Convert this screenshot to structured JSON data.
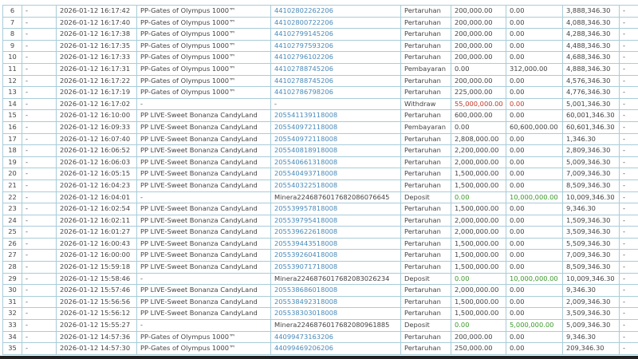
{
  "highlight_row": "14",
  "colors": {
    "link": "#4a8ab8",
    "highlight": "#c0272d",
    "negative": "#c0392b",
    "positive": "#3a9a2a"
  },
  "rows": [
    {
      "no": "6",
      "c2": "-",
      "time": "2026-01-12 16:17:42",
      "game": "PP-Gates of Olympus 1000™",
      "ref": "44102802262206",
      "type": "Pertaruhan",
      "bet": "200,000.00",
      "win": "0.00",
      "balance": "3,888,346.30",
      "c10": "-"
    },
    {
      "no": "7",
      "c2": "-",
      "time": "2026-01-12 16:17:40",
      "game": "PP-Gates of Olympus 1000™",
      "ref": "44102800722206",
      "type": "Pertaruhan",
      "bet": "200,000.00",
      "win": "0.00",
      "balance": "4,088,346.30",
      "c10": "-"
    },
    {
      "no": "8",
      "c2": "-",
      "time": "2026-01-12 16:17:38",
      "game": "PP-Gates of Olympus 1000™",
      "ref": "44102799145206",
      "type": "Pertaruhan",
      "bet": "200,000.00",
      "win": "0.00",
      "balance": "4,288,346.30",
      "c10": "-"
    },
    {
      "no": "9",
      "c2": "-",
      "time": "2026-01-12 16:17:35",
      "game": "PP-Gates of Olympus 1000™",
      "ref": "44102797593206",
      "type": "Pertaruhan",
      "bet": "200,000.00",
      "win": "0.00",
      "balance": "4,488,346.30",
      "c10": "-"
    },
    {
      "no": "10",
      "c2": "-",
      "time": "2026-01-12 16:17:33",
      "game": "PP-Gates of Olympus 1000™",
      "ref": "44102796102206",
      "type": "Pertaruhan",
      "bet": "200,000.00",
      "win": "0.00",
      "balance": "4,688,346.30",
      "c10": "-"
    },
    {
      "no": "11",
      "c2": "-",
      "time": "2026-01-12 16:17:31",
      "game": "PP-Gates of Olympus 1000™",
      "ref": "44102788745206",
      "type": "Pembayaran",
      "bet": "0.00",
      "win": "312,000.00",
      "balance": "4,888,346.30",
      "c10": "-"
    },
    {
      "no": "12",
      "c2": "-",
      "time": "2026-01-12 16:17:22",
      "game": "PP-Gates of Olympus 1000™",
      "ref": "44102788745206",
      "type": "Pertaruhan",
      "bet": "200,000.00",
      "win": "0.00",
      "balance": "4,576,346.30",
      "c10": "-"
    },
    {
      "no": "13",
      "c2": "-",
      "time": "2026-01-12 16:17:19",
      "game": "PP-Gates of Olympus 1000™",
      "ref": "44102786798206",
      "type": "Pertaruhan",
      "bet": "225,000.00",
      "win": "0.00",
      "balance": "4,776,346.30",
      "c10": "-"
    },
    {
      "no": "14",
      "c2": "-",
      "time": "2026-01-12 16:17:02",
      "game": "-",
      "ref": "-",
      "type": "Withdraw",
      "bet": "55,000,000.00",
      "win": "0.00",
      "balance": "5,001,346.30",
      "c10": "-"
    },
    {
      "no": "15",
      "c2": "-",
      "time": "2026-01-12 16:10:00",
      "game": "PP LIVE-Sweet Bonanza CandyLand",
      "ref": "205541139118008",
      "type": "Pertaruhan",
      "bet": "600,000.00",
      "win": "0.00",
      "balance": "60,001,346.30",
      "c10": "-"
    },
    {
      "no": "16",
      "c2": "-",
      "time": "2026-01-12 16:09:33",
      "game": "PP LIVE-Sweet Bonanza CandyLand",
      "ref": "205540972118008",
      "type": "Pembayaran",
      "bet": "0.00",
      "win": "60,600,000.00",
      "balance": "60,601,346.30",
      "c10": "-"
    },
    {
      "no": "17",
      "c2": "-",
      "time": "2026-01-12 16:07:40",
      "game": "PP LIVE-Sweet Bonanza CandyLand",
      "ref": "205540972118008",
      "type": "Pertaruhan",
      "bet": "2,808,000.00",
      "win": "0.00",
      "balance": "1,346.30",
      "c10": "-"
    },
    {
      "no": "18",
      "c2": "-",
      "time": "2026-01-12 16:06:52",
      "game": "PP LIVE-Sweet Bonanza CandyLand",
      "ref": "205540818918008",
      "type": "Pertaruhan",
      "bet": "2,200,000.00",
      "win": "0.00",
      "balance": "2,809,346.30",
      "c10": "-"
    },
    {
      "no": "19",
      "c2": "-",
      "time": "2026-01-12 16:06:03",
      "game": "PP LIVE-Sweet Bonanza CandyLand",
      "ref": "205540661318008",
      "type": "Pertaruhan",
      "bet": "2,000,000.00",
      "win": "0.00",
      "balance": "5,009,346.30",
      "c10": "-"
    },
    {
      "no": "20",
      "c2": "-",
      "time": "2026-01-12 16:05:15",
      "game": "PP LIVE-Sweet Bonanza CandyLand",
      "ref": "205540493718008",
      "type": "Pertaruhan",
      "bet": "1,500,000.00",
      "win": "0.00",
      "balance": "7,009,346.30",
      "c10": "-"
    },
    {
      "no": "21",
      "c2": "-",
      "time": "2026-01-12 16:04:23",
      "game": "PP LIVE-Sweet Bonanza CandyLand",
      "ref": "205540322518008",
      "type": "Pertaruhan",
      "bet": "1,500,000.00",
      "win": "0.00",
      "balance": "8,509,346.30",
      "c10": "-"
    },
    {
      "no": "22",
      "c2": "-",
      "time": "2026-01-12 16:04:01",
      "game": "-",
      "ref": "Minera2246876017682086076645",
      "type": "Deposit",
      "bet": "0.00",
      "win": "10,000,000.00",
      "balance": "10,009,346.30",
      "c10": "-"
    },
    {
      "no": "23",
      "c2": "-",
      "time": "2026-01-12 16:02:54",
      "game": "PP LIVE-Sweet Bonanza CandyLand",
      "ref": "205539957818008",
      "type": "Pertaruhan",
      "bet": "1,500,000.00",
      "win": "0.00",
      "balance": "9,346.30",
      "c10": "-"
    },
    {
      "no": "24",
      "c2": "-",
      "time": "2026-01-12 16:02:11",
      "game": "PP LIVE-Sweet Bonanza CandyLand",
      "ref": "205539795418008",
      "type": "Pertaruhan",
      "bet": "2,000,000.00",
      "win": "0.00",
      "balance": "1,509,346.30",
      "c10": "-"
    },
    {
      "no": "25",
      "c2": "-",
      "time": "2026-01-12 16:01:27",
      "game": "PP LIVE-Sweet Bonanza CandyLand",
      "ref": "205539622618008",
      "type": "Pertaruhan",
      "bet": "2,000,000.00",
      "win": "0.00",
      "balance": "3,509,346.30",
      "c10": "-"
    },
    {
      "no": "26",
      "c2": "-",
      "time": "2026-01-12 16:00:43",
      "game": "PP LIVE-Sweet Bonanza CandyLand",
      "ref": "205539443518008",
      "type": "Pertaruhan",
      "bet": "1,500,000.00",
      "win": "0.00",
      "balance": "5,509,346.30",
      "c10": "-"
    },
    {
      "no": "27",
      "c2": "-",
      "time": "2026-01-12 16:00:00",
      "game": "PP LIVE-Sweet Bonanza CandyLand",
      "ref": "205539260418008",
      "type": "Pertaruhan",
      "bet": "1,500,000.00",
      "win": "0.00",
      "balance": "7,009,346.30",
      "c10": "-"
    },
    {
      "no": "28",
      "c2": "-",
      "time": "2026-01-12 15:59:18",
      "game": "PP LIVE-Sweet Bonanza CandyLand",
      "ref": "205539071718008",
      "type": "Pertaruhan",
      "bet": "1,500,000.00",
      "win": "0.00",
      "balance": "8,509,346.30",
      "c10": "-"
    },
    {
      "no": "29",
      "c2": "-",
      "time": "2026-01-12 15:58:46",
      "game": "-",
      "ref": "Minera2246876017682083026234",
      "type": "Deposit",
      "bet": "0.00",
      "win": "10,000,000.00",
      "balance": "10,009,346.30",
      "c10": "-"
    },
    {
      "no": "30",
      "c2": "-",
      "time": "2026-01-12 15:57:46",
      "game": "PP LIVE-Sweet Bonanza CandyLand",
      "ref": "205538686018008",
      "type": "Pertaruhan",
      "bet": "2,000,000.00",
      "win": "0.00",
      "balance": "9,346.30",
      "c10": "-"
    },
    {
      "no": "31",
      "c2": "-",
      "time": "2026-01-12 15:56:56",
      "game": "PP LIVE-Sweet Bonanza CandyLand",
      "ref": "205538492318008",
      "type": "Pertaruhan",
      "bet": "1,500,000.00",
      "win": "0.00",
      "balance": "2,009,346.30",
      "c10": "-"
    },
    {
      "no": "32",
      "c2": "-",
      "time": "2026-01-12 15:56:12",
      "game": "PP LIVE-Sweet Bonanza CandyLand",
      "ref": "205538303018008",
      "type": "Pertaruhan",
      "bet": "1,500,000.00",
      "win": "0.00",
      "balance": "3,509,346.30",
      "c10": "-"
    },
    {
      "no": "33",
      "c2": "-",
      "time": "2026-01-12 15:55:27",
      "game": "-",
      "ref": "Minera2246876017682080961885",
      "type": "Deposit",
      "bet": "0.00",
      "win": "5,000,000.00",
      "balance": "5,009,346.30",
      "c10": "-"
    },
    {
      "no": "34",
      "c2": "-",
      "time": "2026-01-12 14:57:36",
      "game": "PP-Gates of Olympus 1000™",
      "ref": "44099473163206",
      "type": "Pertaruhan",
      "bet": "200,000.00",
      "win": "0.00",
      "balance": "9,346.30",
      "c10": "-"
    },
    {
      "no": "35",
      "c2": "-",
      "time": "2026-01-12 14:57:30",
      "game": "PP-Gates of Olympus 1000™",
      "ref": "44099469206206",
      "type": "Pertaruhan",
      "bet": "250,000.00",
      "win": "0.00",
      "balance": "209,346.30",
      "c10": "-"
    }
  ]
}
